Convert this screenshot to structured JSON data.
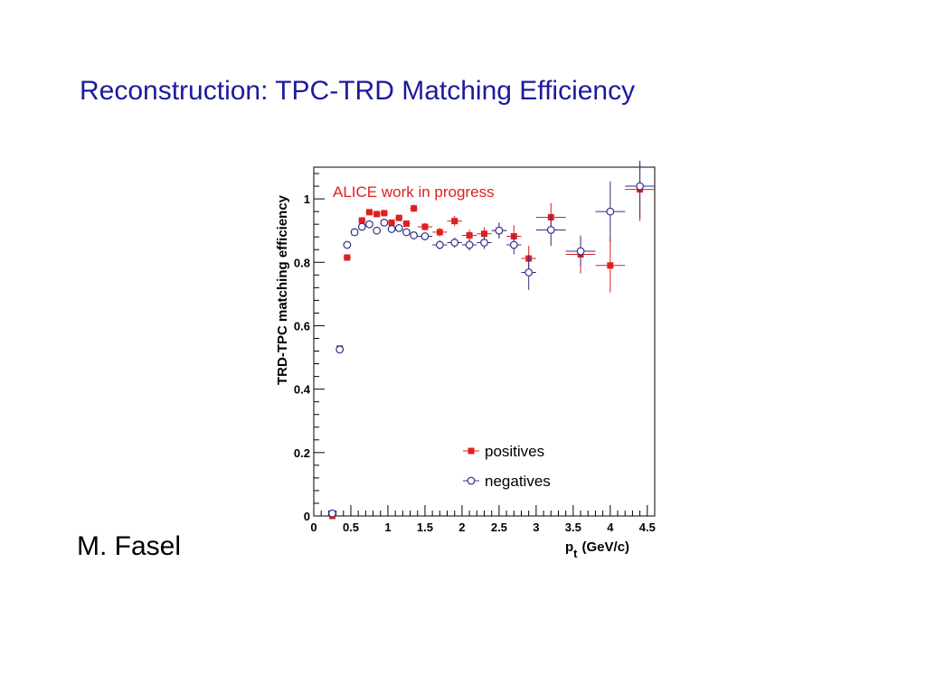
{
  "slide": {
    "title": "Reconstruction: TPC-TRD Matching Efficiency",
    "author": "M. Fasel"
  },
  "chart_data": {
    "type": "scatter",
    "annotation": "ALICE work in progress",
    "annotation_color": "#dd2020",
    "xlabel": "p",
    "xlabel_sub": "t",
    "xlabel_unit": "(GeV/c)",
    "ylabel": "TRD-TPC matching efficiency",
    "xlim": [
      0,
      4.6
    ],
    "ylim": [
      0,
      1.1
    ],
    "x_ticks": [
      {
        "value": 0,
        "label": "0"
      },
      {
        "value": 0.5,
        "label": "0.5"
      },
      {
        "value": 1,
        "label": "1"
      },
      {
        "value": 1.5,
        "label": "1.5"
      },
      {
        "value": 2,
        "label": "2"
      },
      {
        "value": 2.5,
        "label": "2.5"
      },
      {
        "value": 3,
        "label": "3"
      },
      {
        "value": 3.5,
        "label": "3.5"
      },
      {
        "value": 4,
        "label": "4"
      },
      {
        "value": 4.5,
        "label": "4.5"
      }
    ],
    "y_ticks": [
      {
        "value": 0,
        "label": "0"
      },
      {
        "value": 0.2,
        "label": "0.2"
      },
      {
        "value": 0.4,
        "label": "0.4"
      },
      {
        "value": 0.6,
        "label": "0.6"
      },
      {
        "value": 0.8,
        "label": "0.8"
      },
      {
        "value": 1,
        "label": "1"
      }
    ],
    "legend_position": "bottom-right",
    "series": [
      {
        "name": "positives",
        "color": "#dd2020",
        "marker": "square",
        "points": [
          {
            "x": 0.25,
            "y": 0.0,
            "xerr": 0.05,
            "yerr": 0.0
          },
          {
            "x": 0.35,
            "y": 0.528,
            "xerr": 0.05,
            "yerr": 0.005
          },
          {
            "x": 0.45,
            "y": 0.815,
            "xerr": 0.05,
            "yerr": 0.005
          },
          {
            "x": 0.55,
            "y": 0.895,
            "xerr": 0.05,
            "yerr": 0.005
          },
          {
            "x": 0.65,
            "y": 0.932,
            "xerr": 0.05,
            "yerr": 0.006
          },
          {
            "x": 0.75,
            "y": 0.958,
            "xerr": 0.05,
            "yerr": 0.006
          },
          {
            "x": 0.85,
            "y": 0.952,
            "xerr": 0.05,
            "yerr": 0.007
          },
          {
            "x": 0.95,
            "y": 0.955,
            "xerr": 0.05,
            "yerr": 0.007
          },
          {
            "x": 1.05,
            "y": 0.925,
            "xerr": 0.05,
            "yerr": 0.008
          },
          {
            "x": 1.15,
            "y": 0.94,
            "xerr": 0.05,
            "yerr": 0.008
          },
          {
            "x": 1.25,
            "y": 0.922,
            "xerr": 0.05,
            "yerr": 0.01
          },
          {
            "x": 1.35,
            "y": 0.97,
            "xerr": 0.05,
            "yerr": 0.012
          },
          {
            "x": 1.5,
            "y": 0.912,
            "xerr": 0.1,
            "yerr": 0.012
          },
          {
            "x": 1.7,
            "y": 0.895,
            "xerr": 0.1,
            "yerr": 0.014
          },
          {
            "x": 1.9,
            "y": 0.93,
            "xerr": 0.1,
            "yerr": 0.016
          },
          {
            "x": 2.1,
            "y": 0.885,
            "xerr": 0.1,
            "yerr": 0.018
          },
          {
            "x": 2.3,
            "y": 0.89,
            "xerr": 0.1,
            "yerr": 0.02
          },
          {
            "x": 2.5,
            "y": 0.9,
            "xerr": 0.1,
            "yerr": 0.025
          },
          {
            "x": 2.7,
            "y": 0.882,
            "xerr": 0.1,
            "yerr": 0.035
          },
          {
            "x": 2.9,
            "y": 0.812,
            "xerr": 0.1,
            "yerr": 0.04
          },
          {
            "x": 3.2,
            "y": 0.942,
            "xerr": 0.2,
            "yerr": 0.045
          },
          {
            "x": 3.6,
            "y": 0.825,
            "xerr": 0.2,
            "yerr": 0.06
          },
          {
            "x": 4.0,
            "y": 0.79,
            "xerr": 0.2,
            "yerr": 0.085
          },
          {
            "x": 4.4,
            "y": 1.03,
            "xerr": 0.2,
            "yerr": 0.1
          }
        ]
      },
      {
        "name": "negatives",
        "color": "#30308c",
        "marker": "open-circle",
        "points": [
          {
            "x": 0.25,
            "y": 0.008,
            "xerr": 0.05,
            "yerr": 0.0
          },
          {
            "x": 0.35,
            "y": 0.525,
            "xerr": 0.05,
            "yerr": 0.005
          },
          {
            "x": 0.45,
            "y": 0.855,
            "xerr": 0.05,
            "yerr": 0.005
          },
          {
            "x": 0.55,
            "y": 0.895,
            "xerr": 0.05,
            "yerr": 0.005
          },
          {
            "x": 0.65,
            "y": 0.912,
            "xerr": 0.05,
            "yerr": 0.006
          },
          {
            "x": 0.75,
            "y": 0.92,
            "xerr": 0.05,
            "yerr": 0.006
          },
          {
            "x": 0.85,
            "y": 0.9,
            "xerr": 0.05,
            "yerr": 0.007
          },
          {
            "x": 0.95,
            "y": 0.925,
            "xerr": 0.05,
            "yerr": 0.007
          },
          {
            "x": 1.05,
            "y": 0.905,
            "xerr": 0.05,
            "yerr": 0.008
          },
          {
            "x": 1.15,
            "y": 0.908,
            "xerr": 0.05,
            "yerr": 0.008
          },
          {
            "x": 1.25,
            "y": 0.895,
            "xerr": 0.05,
            "yerr": 0.01
          },
          {
            "x": 1.35,
            "y": 0.885,
            "xerr": 0.05,
            "yerr": 0.012
          },
          {
            "x": 1.5,
            "y": 0.882,
            "xerr": 0.1,
            "yerr": 0.012
          },
          {
            "x": 1.7,
            "y": 0.855,
            "xerr": 0.1,
            "yerr": 0.014
          },
          {
            "x": 1.9,
            "y": 0.862,
            "xerr": 0.1,
            "yerr": 0.016
          },
          {
            "x": 2.1,
            "y": 0.855,
            "xerr": 0.1,
            "yerr": 0.018
          },
          {
            "x": 2.3,
            "y": 0.862,
            "xerr": 0.1,
            "yerr": 0.02
          },
          {
            "x": 2.5,
            "y": 0.9,
            "xerr": 0.1,
            "yerr": 0.025
          },
          {
            "x": 2.7,
            "y": 0.855,
            "xerr": 0.1,
            "yerr": 0.03
          },
          {
            "x": 2.9,
            "y": 0.768,
            "xerr": 0.1,
            "yerr": 0.055
          },
          {
            "x": 3.2,
            "y": 0.902,
            "xerr": 0.2,
            "yerr": 0.05
          },
          {
            "x": 3.6,
            "y": 0.835,
            "xerr": 0.2,
            "yerr": 0.045
          },
          {
            "x": 4.0,
            "y": 0.96,
            "xerr": 0.2,
            "yerr": 0.095
          },
          {
            "x": 4.4,
            "y": 1.04,
            "xerr": 0.2,
            "yerr": 0.1
          }
        ]
      }
    ]
  }
}
